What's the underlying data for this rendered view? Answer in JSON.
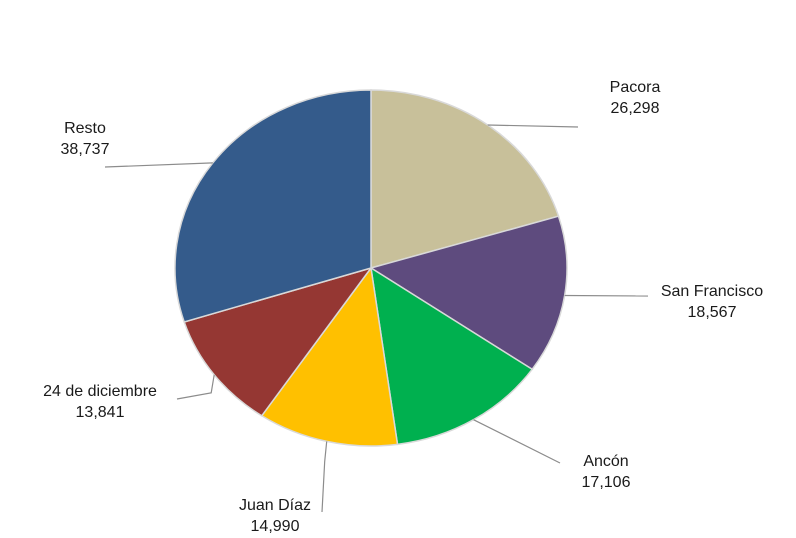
{
  "chart_data": {
    "type": "pie",
    "title": "",
    "start_angle_deg": 0,
    "direction": "clockwise",
    "slices": [
      {
        "label": "Pacora",
        "value": 26298,
        "value_text": "26,298",
        "color": "#c8c09a"
      },
      {
        "label": "San Francisco",
        "value": 18567,
        "value_text": "18,567",
        "color": "#5e4b7e"
      },
      {
        "label": "Ancón",
        "value": 17106,
        "value_text": "17,106",
        "color": "#00b04f"
      },
      {
        "label": "Juan Díaz",
        "value": 14990,
        "value_text": "14,990",
        "color": "#ffc000"
      },
      {
        "label": "24 de diciembre",
        "value": 13841,
        "value_text": "13,841",
        "color": "#953733"
      },
      {
        "label": "Resto",
        "value": 38737,
        "value_text": "38,737",
        "color": "#345b8b"
      }
    ],
    "slice_border_color": "#d9d9d9",
    "leader_color": "#8c8c8c"
  }
}
